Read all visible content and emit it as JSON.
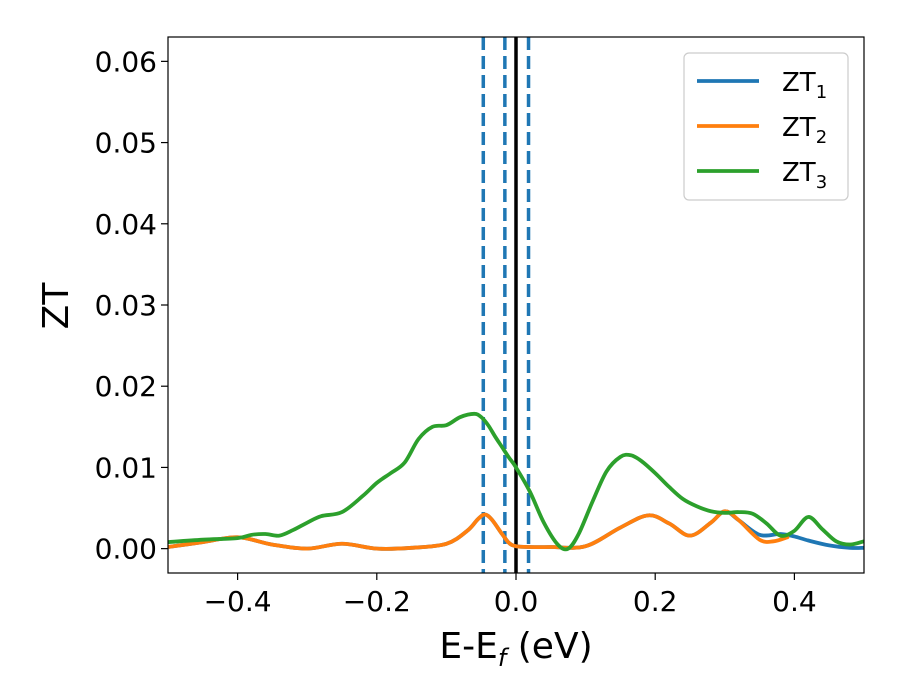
{
  "chart_data": {
    "type": "line",
    "title": "",
    "xlabel": {
      "main": "E-E",
      "sub": "f",
      "suffix": " (eV)"
    },
    "ylabel": "ZT",
    "xlim": [
      -0.5,
      0.5
    ],
    "ylim": [
      -0.003,
      0.063
    ],
    "grid": false,
    "legend_position": "top-right",
    "x_ticks": [
      -0.4,
      -0.2,
      0.0,
      0.2,
      0.4
    ],
    "x_tick_labels": [
      "−0.4",
      "−0.2",
      "0.0",
      "0.2",
      "0.4"
    ],
    "y_ticks": [
      0.0,
      0.01,
      0.02,
      0.03,
      0.04,
      0.05,
      0.06
    ],
    "y_tick_labels": [
      "0.00",
      "0.01",
      "0.02",
      "0.03",
      "0.04",
      "0.05",
      "0.06"
    ],
    "vlines": [
      {
        "x": -0.047,
        "style": "dashed",
        "color": "#1f77b4"
      },
      {
        "x": -0.016,
        "style": "dashed",
        "color": "#1f77b4"
      },
      {
        "x": 0.018,
        "style": "dashed",
        "color": "#1f77b4"
      },
      {
        "x": 0.0,
        "style": "solid",
        "color": "#000000"
      }
    ],
    "series": [
      {
        "name": {
          "main": "ZT",
          "sub": "1"
        },
        "color": "#1f77b4",
        "x": [
          -0.5,
          -0.45,
          -0.4,
          -0.35,
          -0.3,
          -0.25,
          -0.2,
          -0.15,
          -0.1,
          -0.07,
          -0.055,
          -0.045,
          -0.035,
          -0.02,
          -0.01,
          0.0,
          0.02,
          0.05,
          0.1,
          0.15,
          0.19,
          0.22,
          0.25,
          0.28,
          0.3,
          0.32,
          0.35,
          0.38,
          0.4,
          0.42,
          0.45,
          0.48,
          0.5
        ],
        "y": [
          0.0002,
          0.0008,
          0.0014,
          0.0005,
          0.0,
          0.0006,
          0.0,
          0.0001,
          0.0006,
          0.0022,
          0.0036,
          0.0042,
          0.0036,
          0.0018,
          0.0007,
          0.0003,
          0.0002,
          0.0002,
          0.0003,
          0.0026,
          0.0041,
          0.0031,
          0.0016,
          0.0032,
          0.0046,
          0.0035,
          0.0017,
          0.0018,
          0.0015,
          0.001,
          0.0004,
          0.0001,
          0.0001
        ]
      },
      {
        "name": {
          "main": "ZT",
          "sub": "2"
        },
        "color": "#ff7f0e",
        "x": [
          -0.5,
          -0.45,
          -0.4,
          -0.35,
          -0.3,
          -0.25,
          -0.2,
          -0.15,
          -0.1,
          -0.07,
          -0.055,
          -0.045,
          -0.035,
          -0.02,
          -0.01,
          0.0,
          0.02,
          0.05,
          0.1,
          0.15,
          0.19,
          0.22,
          0.25,
          0.28,
          0.3,
          0.32,
          0.35,
          0.37,
          0.39
        ],
        "y": [
          0.0002,
          0.0008,
          0.0014,
          0.0005,
          0.0,
          0.0006,
          0.0,
          0.0001,
          0.0006,
          0.0022,
          0.0036,
          0.0042,
          0.0036,
          0.0018,
          0.0007,
          0.0003,
          0.0002,
          0.0002,
          0.0003,
          0.0026,
          0.0041,
          0.0031,
          0.0016,
          0.0032,
          0.0046,
          0.0035,
          0.0011,
          0.0009,
          0.0014
        ]
      },
      {
        "name": {
          "main": "ZT",
          "sub": "3"
        },
        "color": "#2ca02c",
        "x": [
          -0.5,
          -0.45,
          -0.4,
          -0.38,
          -0.36,
          -0.34,
          -0.32,
          -0.3,
          -0.28,
          -0.25,
          -0.22,
          -0.2,
          -0.18,
          -0.16,
          -0.14,
          -0.12,
          -0.1,
          -0.08,
          -0.06,
          -0.05,
          -0.04,
          -0.03,
          -0.02,
          -0.01,
          0.0,
          0.02,
          0.04,
          0.06,
          0.075,
          0.09,
          0.11,
          0.13,
          0.15,
          0.165,
          0.18,
          0.2,
          0.22,
          0.24,
          0.26,
          0.28,
          0.3,
          0.32,
          0.34,
          0.36,
          0.38,
          0.4,
          0.42,
          0.44,
          0.46,
          0.48,
          0.5
        ],
        "y": [
          0.0008,
          0.0011,
          0.0013,
          0.0017,
          0.0018,
          0.0016,
          0.0023,
          0.0032,
          0.004,
          0.0045,
          0.0065,
          0.0081,
          0.0093,
          0.0106,
          0.0135,
          0.015,
          0.0152,
          0.0162,
          0.0166,
          0.0162,
          0.0152,
          0.0138,
          0.0125,
          0.0112,
          0.01,
          0.007,
          0.0032,
          0.0005,
          0.0,
          0.0018,
          0.0058,
          0.0095,
          0.0113,
          0.0115,
          0.0108,
          0.0093,
          0.0076,
          0.0061,
          0.0052,
          0.0046,
          0.0044,
          0.0045,
          0.0043,
          0.0031,
          0.0016,
          0.0022,
          0.0039,
          0.0024,
          0.0009,
          0.0005,
          0.0009
        ]
      }
    ]
  }
}
